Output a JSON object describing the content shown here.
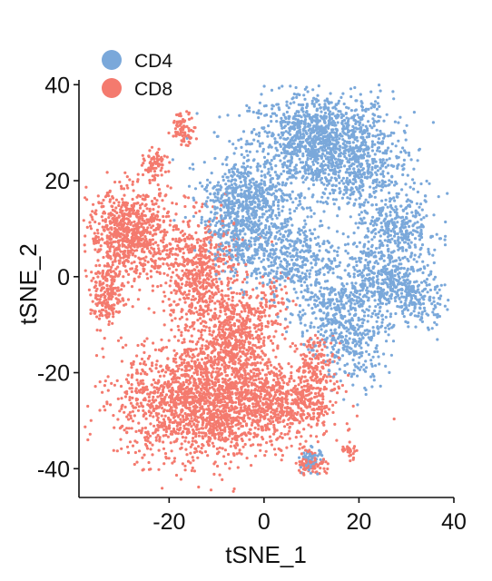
{
  "chart_data": {
    "type": "scatter",
    "title": "",
    "xlabel": "tSNE_1",
    "ylabel": "tSNE_2",
    "xlim": [
      -39,
      40
    ],
    "ylim": [
      -46,
      41
    ],
    "xticks": [
      -20,
      0,
      20,
      40
    ],
    "yticks": [
      40,
      20,
      0,
      -20,
      -40
    ],
    "xtick_labels": [
      "-20",
      "0",
      "20",
      "40"
    ],
    "ytick_labels": [
      "40",
      "20",
      "0",
      "-20",
      "-40"
    ],
    "grid": false,
    "legend_position": "top-left",
    "series": [
      {
        "name": "CD4",
        "color": "#7AA8DA",
        "clusters": [
          {
            "cx": 12,
            "cy": 28,
            "sx": 7.5,
            "sy": 5.2,
            "n": 1300
          },
          {
            "cx": 20,
            "cy": 21,
            "sx": 5,
            "sy": 4,
            "n": 250
          },
          {
            "cx": -4,
            "cy": 17,
            "sx": 4.5,
            "sy": 3.5,
            "n": 450
          },
          {
            "cx": 4,
            "cy": 5,
            "sx": 5.5,
            "sy": 4.5,
            "n": 500
          },
          {
            "cx": -6,
            "cy": 9,
            "sx": 3,
            "sy": 4,
            "n": 250
          },
          {
            "cx": 28,
            "cy": 10,
            "sx": 4.5,
            "sy": 3.5,
            "n": 350
          },
          {
            "cx": 25,
            "cy": -1,
            "sx": 4.5,
            "sy": 4,
            "n": 420
          },
          {
            "cx": 33,
            "cy": -5,
            "sx": 3,
            "sy": 2.5,
            "n": 150
          },
          {
            "cx": 19,
            "cy": -12,
            "sx": 3.5,
            "sy": 5,
            "n": 320
          },
          {
            "cx": 12,
            "cy": -7,
            "sx": 3.5,
            "sy": 4,
            "n": 200
          },
          {
            "cx": 10,
            "cy": -38,
            "sx": 1.2,
            "sy": 1.2,
            "n": 60
          }
        ]
      },
      {
        "name": "CD8",
        "color": "#F47A6E",
        "clusters": [
          {
            "cx": -28,
            "cy": 9,
            "sx": 4.5,
            "sy": 4.5,
            "n": 800
          },
          {
            "cx": -33,
            "cy": -4,
            "sx": 1.8,
            "sy": 3,
            "n": 200
          },
          {
            "cx": -14,
            "cy": 1,
            "sx": 4,
            "sy": 6,
            "n": 600
          },
          {
            "cx": -6,
            "cy": -12,
            "sx": 4,
            "sy": 4.5,
            "n": 500
          },
          {
            "cx": -12,
            "cy": -26,
            "sx": 9,
            "sy": 6,
            "n": 2000
          },
          {
            "cx": 6,
            "cy": -26,
            "sx": 5,
            "sy": 4,
            "n": 400
          },
          {
            "cx": -23,
            "cy": 23,
            "sx": 1.2,
            "sy": 1.6,
            "n": 80
          },
          {
            "cx": -17,
            "cy": 31,
            "sx": 1.2,
            "sy": 1.6,
            "n": 80
          },
          {
            "cx": 11,
            "cy": -18,
            "sx": 2,
            "sy": 3,
            "n": 120
          },
          {
            "cx": 10,
            "cy": -39,
            "sx": 1.5,
            "sy": 1.2,
            "n": 80
          },
          {
            "cx": 18,
            "cy": -36,
            "sx": 0.8,
            "sy": 0.8,
            "n": 25
          },
          {
            "cx": 2,
            "cy": -5,
            "sx": 2,
            "sy": 3,
            "n": 60
          }
        ]
      }
    ]
  }
}
